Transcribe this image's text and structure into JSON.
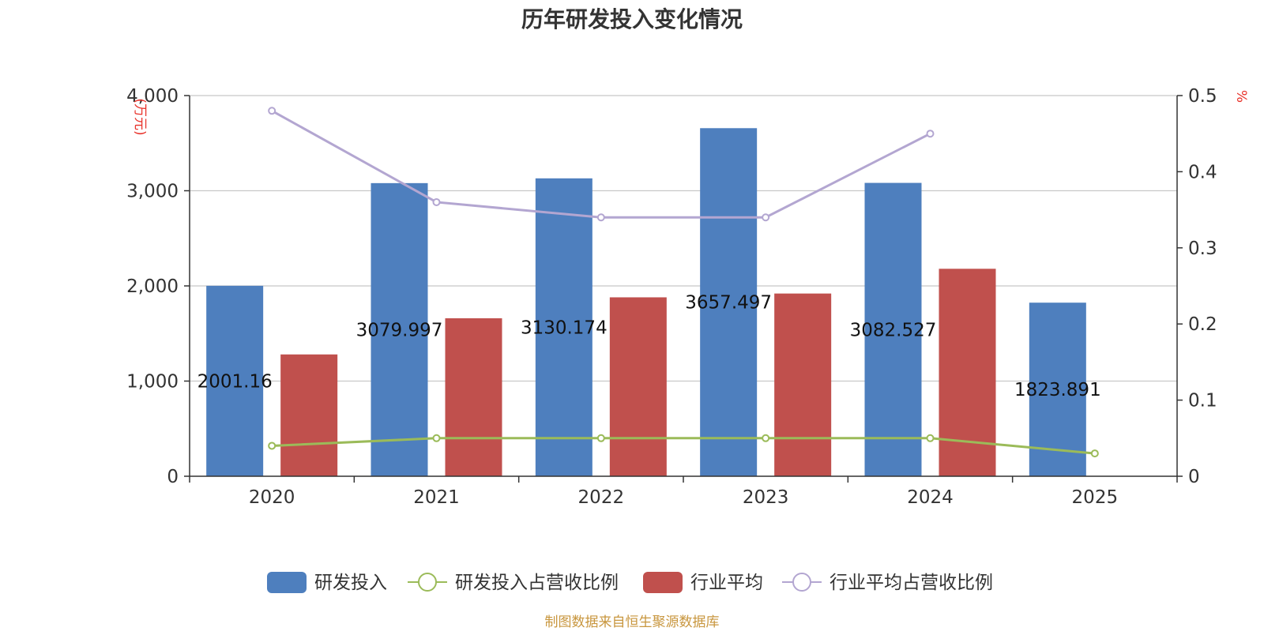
{
  "chart_data": {
    "type": "bar",
    "title": "历年研发投入变化情况",
    "categories": [
      "2020",
      "2021",
      "2022",
      "2023",
      "2024",
      "2025"
    ],
    "y_left": {
      "unit_label": "(万元)",
      "min": 0,
      "max": 4000,
      "ticks": [
        "0",
        "1,000",
        "2,000",
        "3,000",
        "4,000"
      ],
      "tick_values": [
        0,
        1000,
        2000,
        3000,
        4000
      ]
    },
    "y_right": {
      "unit_label": "%",
      "min": 0,
      "max": 0.5,
      "ticks": [
        "0",
        "0.1",
        "0.2",
        "0.3",
        "0.4",
        "0.5"
      ],
      "tick_values": [
        0,
        0.1,
        0.2,
        0.3,
        0.4,
        0.5
      ]
    },
    "series": [
      {
        "name": "研发投入",
        "kind": "bar",
        "axis": "left",
        "color": "#4e7fbe",
        "values": [
          2001.16,
          3079.997,
          3130.174,
          3657.497,
          3082.527,
          1823.891
        ],
        "labels": [
          "2001.16",
          "3079.997",
          "3130.174",
          "3657.497",
          "3082.527",
          "1823.891"
        ]
      },
      {
        "name": "行业平均",
        "kind": "bar",
        "axis": "left",
        "color": "#c0504d",
        "values": [
          1280,
          1660,
          1880,
          1920,
          2180,
          null
        ]
      },
      {
        "name": "研发投入占营收比例",
        "kind": "line",
        "axis": "right",
        "color": "#9bbb59",
        "values": [
          0.04,
          0.05,
          0.05,
          0.05,
          0.05,
          0.03
        ]
      },
      {
        "name": "行业平均占营收比例",
        "kind": "line",
        "axis": "right",
        "color": "#b3a6d1",
        "values": [
          0.48,
          0.36,
          0.34,
          0.34,
          0.45,
          null
        ]
      }
    ],
    "legend_position": "bottom",
    "grid": true
  },
  "footer": {
    "source": "制图数据来自恒生聚源数据库",
    "source_color": "#c8963e"
  }
}
